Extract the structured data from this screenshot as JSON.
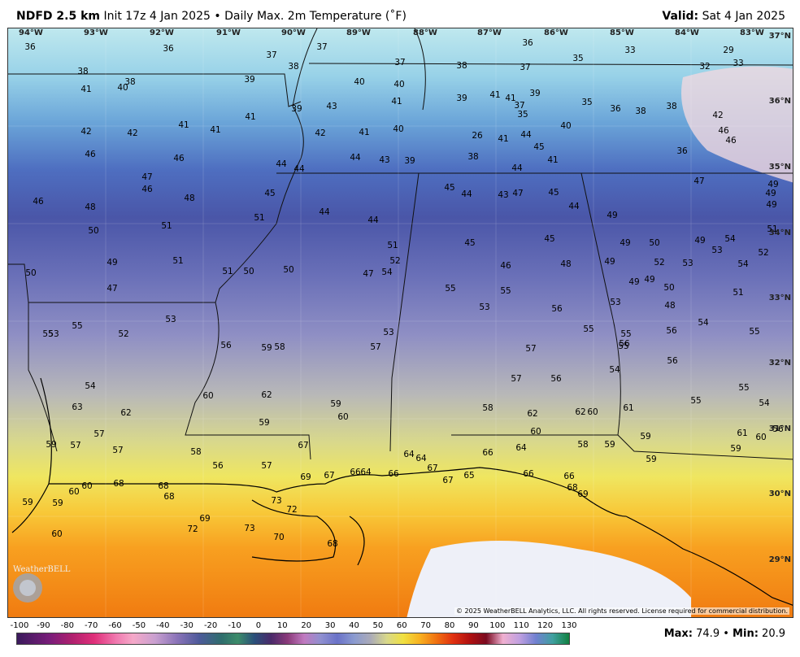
{
  "header": {
    "model": "NDFD 2.5 km",
    "init": "Init 17z 4 Jan 2025",
    "bullet": "•",
    "product": "Daily Max. 2m Temperature (˚F)",
    "valid_label": "Valid:",
    "valid_date": "Sat 4 Jan 2025"
  },
  "map": {
    "longitudes": [
      "94°W",
      "93°W",
      "92°W",
      "91°W",
      "90°W",
      "89°W",
      "88°W",
      "87°W",
      "86°W",
      "85°W",
      "84°W",
      "83°W"
    ],
    "latitudes": [
      "37°N",
      "36°N",
      "35°N",
      "34°N",
      "33°N",
      "32°N",
      "31°N",
      "30°N",
      "29°N"
    ],
    "copyright": "© 2025 WeatherBELL Analytics, LLC. All rights reserved. License required for commercial distribution.",
    "logo": "WeatherBELL",
    "values": [
      "36",
      "36",
      "37",
      "37",
      "38",
      "37",
      "38",
      "37",
      "36",
      "35",
      "33",
      "29",
      "33",
      "32",
      "38",
      "41",
      "40",
      "38",
      "39",
      "40",
      "40",
      "41",
      "39",
      "41",
      "41",
      "39",
      "37",
      "35",
      "35",
      "36",
      "38",
      "38",
      "42",
      "42",
      "42",
      "41",
      "41",
      "41",
      "39",
      "43",
      "42",
      "41",
      "40",
      "26",
      "41",
      "44",
      "45",
      "46",
      "46",
      "46",
      "46",
      "44",
      "44",
      "44",
      "43",
      "39",
      "38",
      "41",
      "44",
      "40",
      "36",
      "47",
      "46",
      "46",
      "48",
      "48",
      "45",
      "44",
      "44",
      "45",
      "44",
      "43",
      "47",
      "45",
      "44",
      "49",
      "49",
      "47",
      "49",
      "49",
      "49",
      "50",
      "51",
      "51",
      "51",
      "52",
      "54",
      "51",
      "51",
      "50",
      "50",
      "49",
      "50",
      "47",
      "47",
      "45",
      "45",
      "46",
      "48",
      "49",
      "49",
      "50",
      "52",
      "53",
      "53",
      "52",
      "54",
      "54",
      "51",
      "49",
      "49",
      "48",
      "50",
      "51",
      "55",
      "55",
      "53",
      "53",
      "56",
      "55",
      "55",
      "54",
      "55",
      "55",
      "53",
      "55",
      "52",
      "53",
      "53",
      "57",
      "59",
      "58",
      "56",
      "54",
      "55",
      "56",
      "56",
      "56",
      "57",
      "57",
      "56",
      "55",
      "56",
      "55",
      "54",
      "54",
      "63",
      "62",
      "60",
      "62",
      "59",
      "60",
      "59",
      "58",
      "62",
      "62",
      "60",
      "60",
      "61",
      "59",
      "58",
      "59",
      "59",
      "61",
      "60",
      "59",
      "59",
      "57",
      "57",
      "57",
      "58",
      "56",
      "57",
      "67",
      "69",
      "67",
      "66",
      "64",
      "66",
      "64",
      "64",
      "67",
      "67",
      "65",
      "66",
      "64",
      "66",
      "66",
      "68",
      "69",
      "59",
      "59",
      "60",
      "60",
      "68",
      "68",
      "68",
      "69",
      "72",
      "73",
      "73",
      "72",
      "70",
      "68",
      "60"
    ]
  },
  "colorbar": {
    "ticks": [
      "-100",
      "-90",
      "-80",
      "-70",
      "-60",
      "-50",
      "-40",
      "-30",
      "-20",
      "-10",
      "0",
      "10",
      "20",
      "30",
      "40",
      "50",
      "60",
      "70",
      "80",
      "90",
      "100",
      "110",
      "120",
      "130"
    ]
  },
  "stats": {
    "max_label": "Max",
    "max_value": "74.9",
    "min_label": "Min",
    "min_value": "20.9",
    "bullet": "•"
  }
}
